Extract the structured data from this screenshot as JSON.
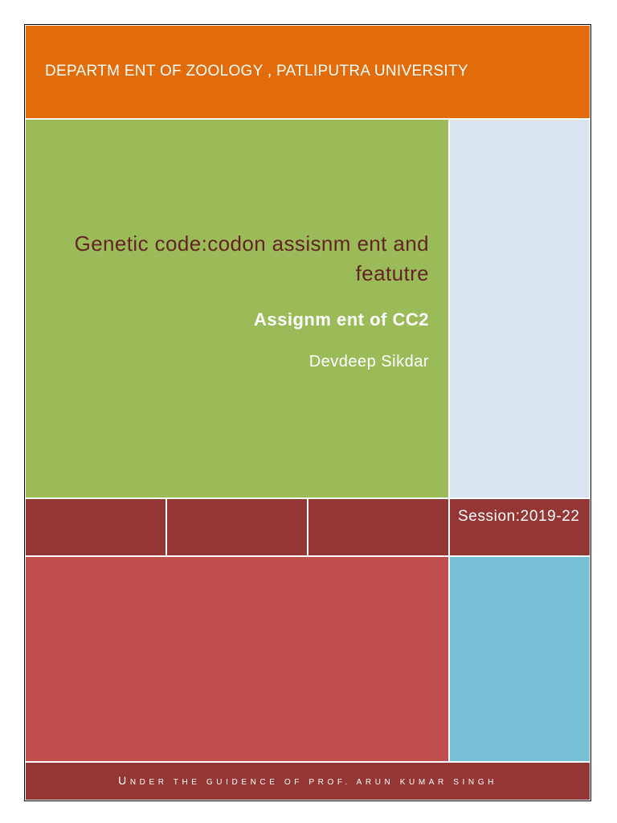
{
  "header": {
    "department": "DEPARTM ENT OF ZOOLOGY , PATLIPUTRA UNIVERSITY"
  },
  "main": {
    "title": "Genetic code:codon assisnm ent and featutre",
    "subtitle": "Assignm ent of CC2",
    "author": "Devdeep Sikdar"
  },
  "session": "Session:2019-22",
  "footer": {
    "guidance": "Under the guidence of Prof. Arun Kumar Singh"
  },
  "colors": {
    "orange": "#e36c0a",
    "green": "#9bbb59",
    "pale_blue": "#dbe5f1",
    "maroon": "#943634",
    "red": "#c0504d",
    "aqua": "#78c0d6",
    "title_text": "#632423"
  }
}
